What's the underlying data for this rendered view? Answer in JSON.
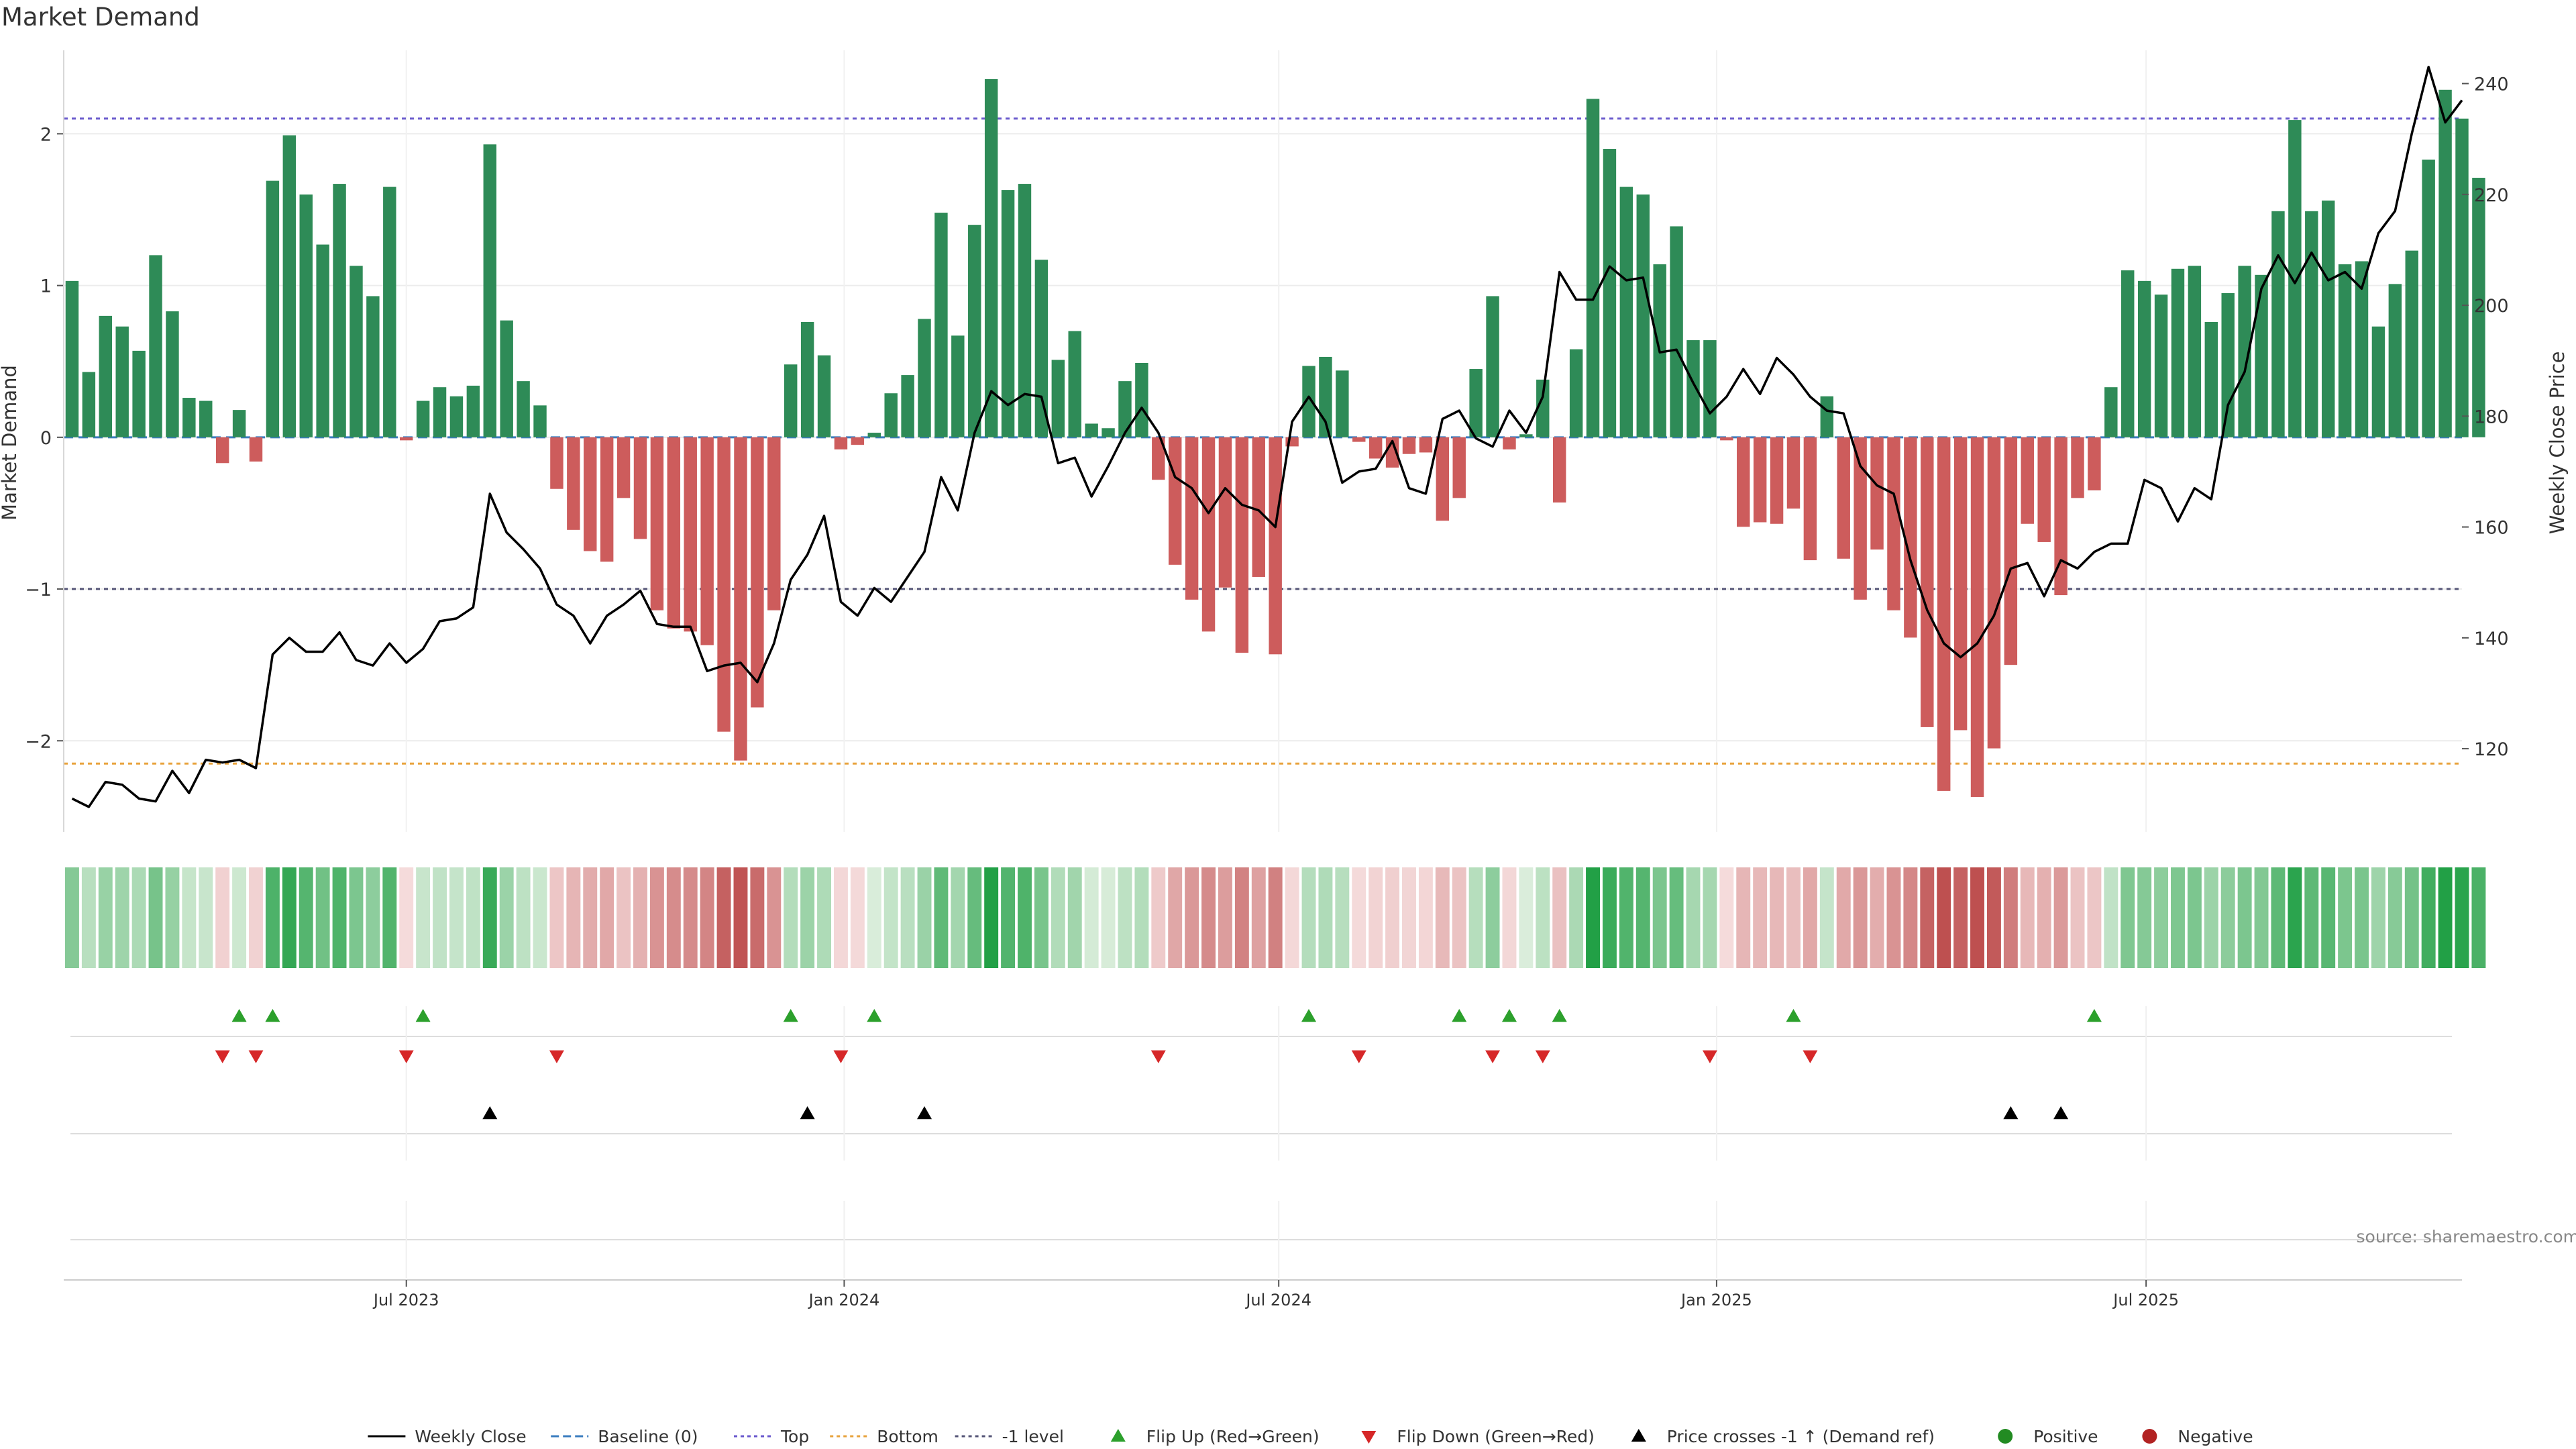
{
  "chart_data": {
    "type": "bar+line",
    "title": "Market Demand",
    "ylabel_left": "Market Demand",
    "ylabel_right": "Weekly Close Price",
    "ylim_left": [
      -2.6,
      2.55
    ],
    "ylim_right": [
      105,
      246
    ],
    "yticks_left": [
      2,
      1,
      0,
      -1,
      -2
    ],
    "ytick_labels_left": [
      "2",
      "1",
      "0",
      "−1",
      "−2"
    ],
    "yticks_right": [
      240,
      220,
      200,
      180,
      160,
      140,
      120
    ],
    "ytick_labels_right": [
      "240",
      "220",
      "200",
      "180",
      "160",
      "140",
      "120"
    ],
    "x_start_week": 0,
    "x_end_week": 143.5,
    "x_tick_weeks": [
      20.5,
      46.7,
      72.7,
      98.9,
      124.6
    ],
    "x_tick_labels": [
      "Jul 2023",
      "Jan 2024",
      "Jul 2024",
      "Jan 2025",
      "Jul 2025"
    ],
    "reference_lines": {
      "top": 2.1,
      "bottom": -2.15,
      "minus_one": -1,
      "baseline": 0
    },
    "colors": {
      "positive_bar": "#2e8b57",
      "negative_bar": "#cd5c5c",
      "price_line": "#000000",
      "top_line": "#6a5acd",
      "bottom_line": "#e8a33d",
      "minus_one_line": "#555577",
      "baseline": "#3b7dbf",
      "flip_up": "#2ca02c",
      "flip_down": "#d62728",
      "cross": "#000000",
      "legend_positive": "#228b22",
      "legend_negative": "#b22222"
    },
    "demand": [
      1.03,
      0.43,
      0.8,
      0.73,
      0.57,
      1.2,
      0.83,
      0.26,
      0.24,
      -0.17,
      0.18,
      -0.16,
      1.69,
      1.99,
      1.6,
      1.27,
      1.67,
      1.13,
      0.93,
      1.65,
      -0.02,
      0.24,
      0.33,
      0.27,
      0.34,
      1.93,
      0.77,
      0.37,
      0.21,
      -0.34,
      -0.61,
      -0.75,
      -0.82,
      -0.4,
      -0.67,
      -1.14,
      -1.26,
      -1.28,
      -1.37,
      -1.94,
      -2.13,
      -1.78,
      -1.14,
      0.48,
      0.76,
      0.54,
      -0.08,
      -0.05,
      0.03,
      0.29,
      0.41,
      0.78,
      1.48,
      0.67,
      1.4,
      2.36,
      1.63,
      1.67,
      1.17,
      0.51,
      0.7,
      0.09,
      0.06,
      0.37,
      0.49,
      -0.28,
      -0.84,
      -1.07,
      -1.28,
      -0.99,
      -1.42,
      -0.92,
      -1.43,
      -0.06,
      0.47,
      0.53,
      0.44,
      -0.03,
      -0.14,
      -0.2,
      -0.11,
      -0.1,
      -0.55,
      -0.4,
      0.45,
      0.93,
      -0.08,
      0.02,
      0.38,
      -0.43,
      0.58,
      2.23,
      1.9,
      1.65,
      1.6,
      1.14,
      1.39,
      0.64,
      0.64,
      -0.02,
      -0.59,
      -0.56,
      -0.57,
      -0.47,
      -0.81,
      0.27,
      -0.8,
      -1.07,
      -0.74,
      -1.14,
      -1.32,
      -1.91,
      -2.33,
      -1.93,
      -2.37,
      -2.05,
      -1.5,
      -0.57,
      -0.69,
      -1.04,
      -0.4,
      -0.35,
      0.33,
      1.1,
      1.03,
      0.94,
      1.11,
      1.13,
      0.76,
      0.95,
      1.13,
      1.07,
      1.49,
      2.09,
      1.49,
      1.56,
      1.14,
      1.16,
      0.73,
      1.01,
      1.23,
      1.83,
      2.29,
      2.1,
      1.71
    ],
    "weekly_close": [
      111,
      109.5,
      114,
      113.5,
      111,
      110.5,
      116,
      112,
      118,
      117.5,
      118,
      116.5,
      137,
      140,
      137.5,
      137.5,
      141,
      136,
      135,
      139,
      135.5,
      138,
      143,
      143.5,
      145.5,
      166,
      159,
      156,
      152.5,
      146,
      144,
      139,
      144,
      146,
      148.5,
      142.5,
      142,
      142,
      134,
      135,
      135.5,
      132,
      139,
      150.5,
      155,
      162,
      146.5,
      144,
      149,
      146.5,
      151,
      155.5,
      169,
      163,
      177,
      184.5,
      182,
      184,
      183.5,
      171.5,
      172.5,
      165.5,
      171,
      177,
      181.5,
      177,
      169,
      167,
      162.5,
      167,
      164,
      163,
      160,
      179,
      183.5,
      179,
      168,
      170,
      170.5,
      175.5,
      167,
      166,
      179.5,
      181,
      176,
      174.5,
      181,
      177,
      183.5,
      206,
      201,
      201,
      207,
      204.5,
      205,
      191.5,
      192,
      186,
      180.5,
      183.5,
      188.5,
      184,
      190.5,
      187.5,
      183.5,
      181,
      180.5,
      171,
      167.5,
      166,
      154,
      145,
      139,
      136.5,
      139,
      144,
      152.5,
      153.5,
      147.5,
      154,
      152.5,
      155.5,
      157,
      157,
      168.5,
      167,
      161,
      167,
      165,
      182,
      188,
      203,
      209,
      204,
      209.5,
      204.5,
      206,
      203,
      213,
      217,
      231,
      243,
      233,
      237
    ],
    "heat_stripe": {
      "description": "one cell per week, colour intensity follows demand value",
      "values_ref": "demand"
    },
    "flip_up_weeks": [
      10.5,
      12.5,
      21.5,
      43.5,
      48.5,
      74.5,
      83.5,
      86.5,
      89.5,
      103.5,
      121.5
    ],
    "flip_down_weeks": [
      9.5,
      11.5,
      20.5,
      29.5,
      46.5,
      65.5,
      77.5,
      85.5,
      88.5,
      98.5,
      104.5
    ],
    "price_cross_weeks": [
      25.5,
      44.5,
      51.5,
      116.5,
      119.5
    ],
    "source_note": "source: sharemaestro.com",
    "legend": [
      {
        "label": "Weekly Close",
        "kind": "line-solid",
        "color": "#000000"
      },
      {
        "label": "Baseline (0)",
        "kind": "line-dash",
        "color": "#3b7dbf"
      },
      {
        "label": "Top",
        "kind": "line-dot",
        "color": "#6a5acd"
      },
      {
        "label": "Bottom",
        "kind": "line-dot",
        "color": "#e8a33d"
      },
      {
        "label": "-1 level",
        "kind": "line-dot",
        "color": "#555577"
      },
      {
        "label": "Flip Up (Red→Green)",
        "kind": "tri-up",
        "color": "#2ca02c"
      },
      {
        "label": "Flip Down (Green→Red)",
        "kind": "tri-down",
        "color": "#d62728"
      },
      {
        "label": "Price crosses -1 ↑ (Demand ref)",
        "kind": "tri-up",
        "color": "#000000"
      },
      {
        "label": "Positive",
        "kind": "dot",
        "color": "#228b22"
      },
      {
        "label": "Negative",
        "kind": "dot",
        "color": "#b22222"
      }
    ]
  }
}
